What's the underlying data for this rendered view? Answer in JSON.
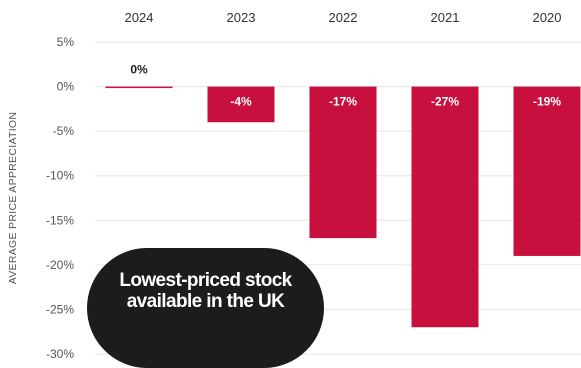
{
  "chart_data": {
    "type": "bar",
    "categories": [
      "2024",
      "2023",
      "2022",
      "2021",
      "2020"
    ],
    "values": [
      0,
      -4,
      -17,
      -27,
      -19
    ],
    "data_labels": [
      "0%",
      "-4%",
      "-17%",
      "-27%",
      "-19%"
    ],
    "title": "",
    "xlabel": "",
    "ylabel": "AVERAGE PRICE APPRECIATION",
    "ylim": [
      -30,
      5
    ],
    "yticks": [
      5,
      0,
      -5,
      -10,
      -15,
      -20,
      -25,
      -30
    ],
    "ytick_labels": [
      "5%",
      "0%",
      "-5%",
      "-10%",
      "-15%",
      "-20%",
      "-25%",
      "-30%"
    ],
    "x_axis_position": "top",
    "grid": true,
    "legend": "none"
  },
  "colors": {
    "bar": "#c8103e",
    "bar_label": "#ffffff",
    "positive_label": "#222222",
    "grid": "#e6e6e6",
    "callout_bg": "#1c1c1c",
    "callout_text": "#ffffff"
  },
  "callout": {
    "text": "Lowest-priced stock available in the UK"
  }
}
